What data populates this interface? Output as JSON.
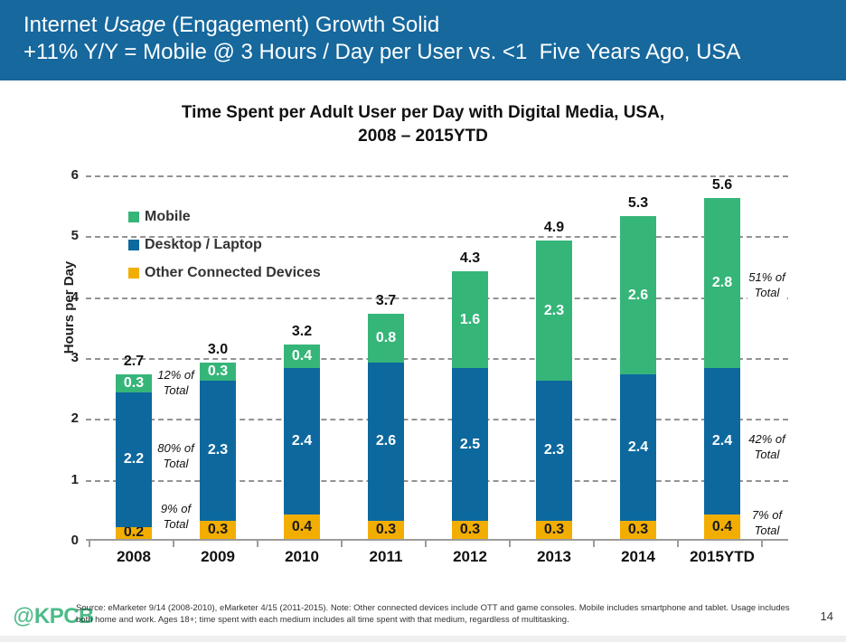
{
  "header": {
    "title_pre": "Internet ",
    "title_italic": "Usage",
    "title_post": " (Engagement) Growth Solid",
    "subtitle": "+11% Y/Y = Mobile @ 3 Hours / Day per User vs. <1  Five Years Ago, USA",
    "bg_color": "#16689D"
  },
  "chart_data": {
    "type": "bar",
    "stacked": true,
    "title_line1": "Time Spent per Adult User per Day with Digital Media, USA,",
    "title_line2": "2008 – 2015YTD",
    "ylabel": "Hours per Day",
    "ylim": [
      0,
      6
    ],
    "yticks": [
      0,
      1,
      2,
      3,
      4,
      5,
      6
    ],
    "grid": "horizontal-dashed",
    "legend_position": "top-left-inside",
    "categories": [
      "2008",
      "2009",
      "2010",
      "2011",
      "2012",
      "2013",
      "2014",
      "2015YTD"
    ],
    "series": [
      {
        "name": "Other Connected Devices",
        "color": "#F2AE00",
        "label_color": "#1A1A1A",
        "values": [
          0.2,
          0.3,
          0.4,
          0.3,
          0.3,
          0.3,
          0.3,
          0.4
        ]
      },
      {
        "name": "Desktop / Laptop",
        "color": "#0D689E",
        "label_color": "#FFFFFF",
        "values": [
          2.2,
          2.3,
          2.4,
          2.6,
          2.5,
          2.3,
          2.4,
          2.4
        ]
      },
      {
        "name": "Mobile",
        "color": "#36B579",
        "label_color": "#FFFFFF",
        "values": [
          0.3,
          0.3,
          0.4,
          0.8,
          1.6,
          2.3,
          2.6,
          2.8
        ]
      }
    ],
    "totals": [
      "2.7",
      "3.0",
      "3.2",
      "3.7",
      "4.3",
      "4.9",
      "5.3",
      "5.6"
    ],
    "legend": [
      {
        "label": "Mobile",
        "color": "#36B579"
      },
      {
        "label": "Desktop / Laptop",
        "color": "#0D689E"
      },
      {
        "label": "Other Connected Devices",
        "color": "#F2AE00"
      }
    ],
    "annotations": [
      {
        "side": "left",
        "lines": [
          "12% of",
          "Total"
        ],
        "at_value": 2.6
      },
      {
        "side": "left",
        "lines": [
          "80% of",
          "Total"
        ],
        "at_value": 1.4
      },
      {
        "side": "left",
        "lines": [
          "9% of",
          "Total"
        ],
        "at_value": 0.4
      },
      {
        "side": "right",
        "lines": [
          "51% of",
          "Total"
        ],
        "at_value": 4.2
      },
      {
        "side": "right",
        "lines": [
          "42% of",
          "Total"
        ],
        "at_value": 1.55
      },
      {
        "side": "right",
        "lines": [
          "7% of",
          "Total"
        ],
        "at_value": 0.3
      }
    ]
  },
  "footer": {
    "logo_at": "@",
    "logo_name": "KPCB",
    "source_text": "Source: eMarketer 9/14 (2008-2010), eMarketer 4/15 (2011-2015). Note: Other connected devices include OTT and game consoles. Mobile includes smartphone and tablet. Usage includes both home and work. Ages 18+; time spent with each medium includes all time spent with that medium, regardless of multitasking.",
    "page_number": "14"
  }
}
